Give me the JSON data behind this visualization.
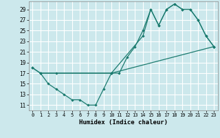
{
  "xlabel": "Humidex (Indice chaleur)",
  "bg_color": "#cce8ec",
  "grid_color": "#ffffff",
  "line_color": "#1a7a6e",
  "xlim": [
    -0.5,
    23.5
  ],
  "ylim": [
    10.0,
    30.5
  ],
  "yticks": [
    11,
    13,
    15,
    17,
    19,
    21,
    23,
    25,
    27,
    29
  ],
  "xticks": [
    0,
    1,
    2,
    3,
    4,
    5,
    6,
    7,
    8,
    9,
    10,
    11,
    12,
    13,
    14,
    15,
    16,
    17,
    18,
    19,
    20,
    21,
    22,
    23
  ],
  "line1_x": [
    0,
    1,
    2,
    3,
    4,
    5,
    6,
    7,
    8,
    9,
    10,
    11,
    12,
    13,
    14,
    15,
    16,
    17,
    18,
    19,
    20,
    21,
    22,
    23
  ],
  "line1_y": [
    18,
    17,
    15,
    14,
    13,
    12,
    12,
    11,
    11,
    14,
    17,
    17,
    20,
    22,
    25,
    29,
    26,
    29,
    30,
    29,
    29,
    27,
    24,
    22
  ],
  "line2_x": [
    0,
    1,
    3,
    10,
    14,
    15,
    16,
    17,
    18,
    19,
    20,
    21,
    22,
    23
  ],
  "line2_y": [
    18,
    17,
    17,
    17,
    24,
    29,
    26,
    29,
    30,
    29,
    29,
    27,
    24,
    22
  ],
  "line3_x": [
    1,
    10,
    23
  ],
  "line3_y": [
    17,
    17,
    22
  ]
}
